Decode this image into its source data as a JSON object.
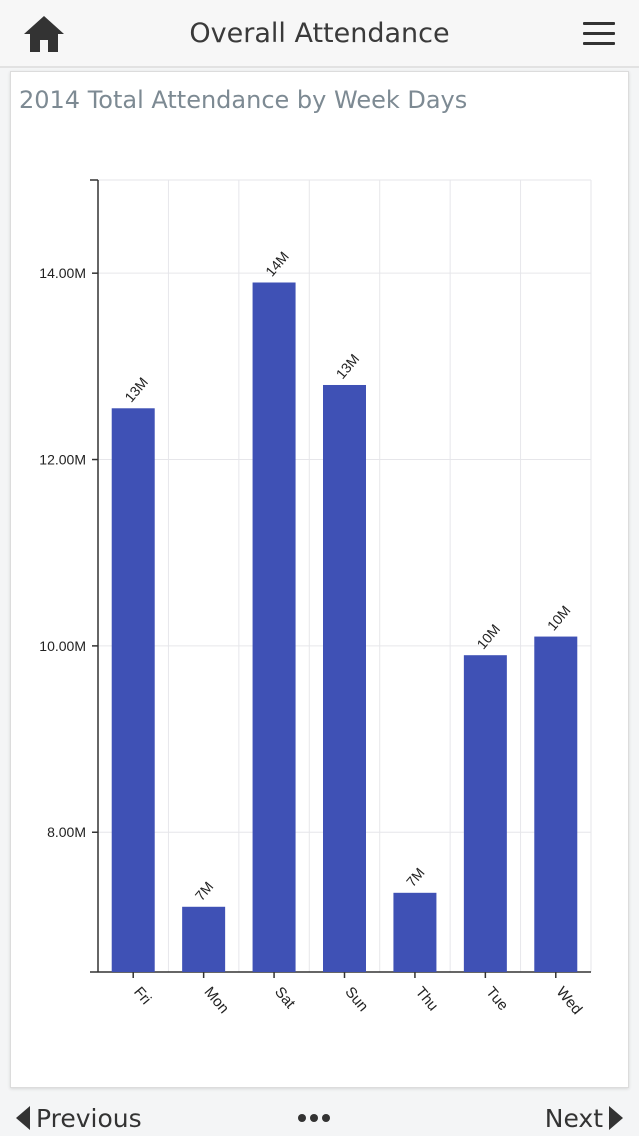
{
  "header": {
    "title": "Overall Attendance",
    "home_icon": "home-icon",
    "menu_icon": "hamburger-menu-icon"
  },
  "footer": {
    "previous_label": "Previous",
    "next_label": "Next",
    "more_icon": "more-dots-icon"
  },
  "colors": {
    "bar": "#3f51b5",
    "grid": "#e6e6ea",
    "axis": "#333333"
  },
  "chart_data": {
    "type": "bar",
    "title": "2014 Total Attendance by Week Days",
    "xlabel": "",
    "ylabel": "",
    "categories": [
      "Fri",
      "Mon",
      "Sat",
      "Sun",
      "Thu",
      "Tue",
      "Wed"
    ],
    "values": [
      12.55,
      7.2,
      13.9,
      12.8,
      7.35,
      9.9,
      10.1
    ],
    "data_labels": [
      "13M",
      "7M",
      "14M",
      "13M",
      "7M",
      "10M",
      "10M"
    ],
    "ylim": [
      6.5,
      15.0
    ],
    "yticks": [
      8,
      10,
      12,
      14
    ],
    "ytick_labels": [
      "8.00M",
      "10.00M",
      "12.00M",
      "14.00M"
    ],
    "grid": true,
    "legend": "none"
  }
}
